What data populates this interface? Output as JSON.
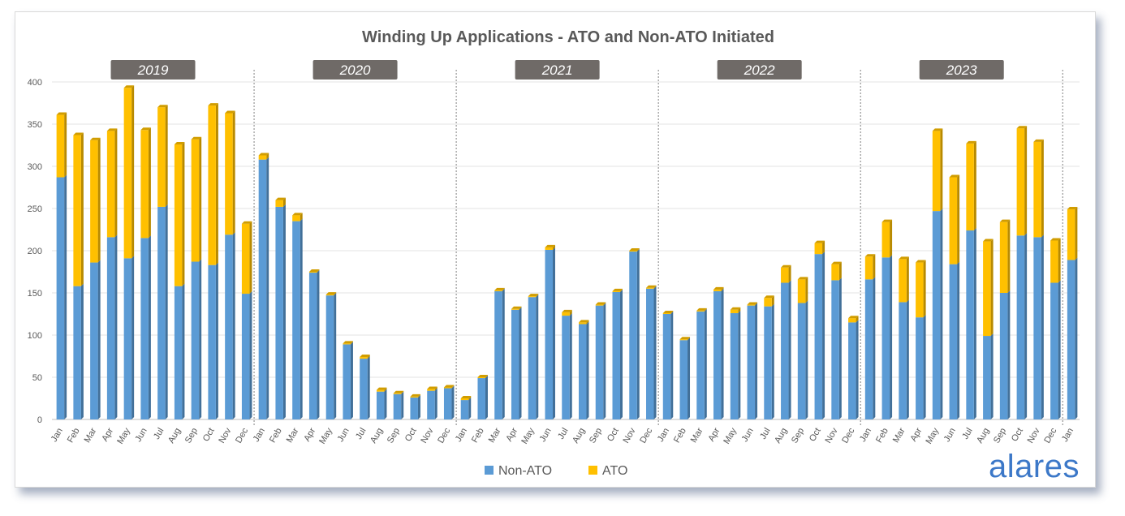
{
  "logo": "alares",
  "chart_data": {
    "type": "bar",
    "stacked": true,
    "title": "Winding Up Applications - ATO and Non-ATO Initiated",
    "ylim": [
      0,
      400
    ],
    "yticks": [
      0,
      50,
      100,
      150,
      200,
      250,
      300,
      350,
      400
    ],
    "grid": true,
    "legend_position": "bottom",
    "year_labels": [
      "2019",
      "2020",
      "2021",
      "2022",
      "2023"
    ],
    "categories": [
      "Jan",
      "Feb",
      "Mar",
      "Apr",
      "May",
      "Jun",
      "Jul",
      "Aug",
      "Sep",
      "Oct",
      "Nov",
      "Dec",
      "Jan",
      "Feb",
      "Mar",
      "Apr",
      "May",
      "Jun",
      "Jul",
      "Aug",
      "Sep",
      "Oct",
      "Nov",
      "Dec",
      "Jan",
      "Feb",
      "Mar",
      "Apr",
      "May",
      "Jun",
      "Jul",
      "Aug",
      "Sep",
      "Oct",
      "Nov",
      "Dec",
      "Jan",
      "Feb",
      "Mar",
      "Apr",
      "May",
      "Jun",
      "Jul",
      "Aug",
      "Sep",
      "Oct",
      "Nov",
      "Dec",
      "Jan",
      "Feb",
      "Mar",
      "Apr",
      "May",
      "Jun",
      "Jul",
      "Aug",
      "Sep",
      "Oct",
      "Nov",
      "Dec",
      "Jan"
    ],
    "series": [
      {
        "name": "Non-ATO",
        "color": "#5b9bd5",
        "values": [
          287,
          158,
          186,
          216,
          191,
          215,
          252,
          158,
          187,
          183,
          219,
          149,
          308,
          252,
          235,
          174,
          147,
          89,
          72,
          33,
          30,
          26,
          34,
          37,
          23,
          49,
          152,
          130,
          145,
          201,
          123,
          113,
          135,
          151,
          199,
          155,
          125,
          94,
          128,
          152,
          126,
          135,
          134,
          162,
          138,
          196,
          165,
          115,
          166,
          192,
          139,
          121,
          247,
          184,
          224,
          99,
          150,
          218,
          216,
          162,
          189
        ]
      },
      {
        "name": "ATO",
        "color": "#ffc000",
        "values": [
          74,
          179,
          145,
          126,
          202,
          128,
          118,
          168,
          145,
          189,
          144,
          83,
          5,
          8,
          7,
          1,
          1,
          1,
          2,
          2,
          1,
          1,
          2,
          1,
          2,
          1,
          1,
          1,
          1,
          3,
          4,
          2,
          1,
          1,
          1,
          1,
          1,
          1,
          1,
          2,
          4,
          1,
          10,
          18,
          28,
          13,
          19,
          5,
          27,
          42,
          51,
          65,
          95,
          103,
          103,
          112,
          84,
          127,
          113,
          50,
          60
        ]
      }
    ]
  }
}
